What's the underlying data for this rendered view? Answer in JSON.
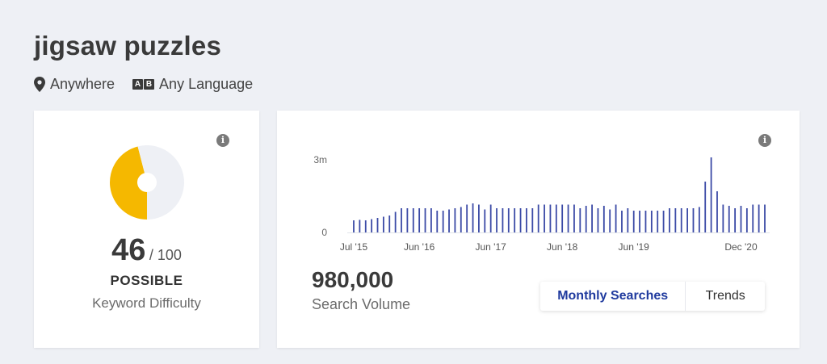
{
  "keyword": {
    "title": "jigsaw puzzles"
  },
  "filters": {
    "location": "Anywhere",
    "language": "Any Language",
    "language_icon_chars": [
      "A",
      "B"
    ]
  },
  "difficulty": {
    "score": "46",
    "max": "/ 100",
    "status": "POSSIBLE",
    "label": "Keyword Difficulty",
    "fraction": 0.46,
    "accent_color": "#f5b800",
    "track_color": "#eef0f5"
  },
  "volume": {
    "value": "980,000",
    "label": "Search Volume"
  },
  "toggle": {
    "monthly_label": "Monthly Searches",
    "trends_label": "Trends",
    "selected": "monthly",
    "selected_color": "#1f3a9e"
  },
  "info_icon_char": "i",
  "chart_data": {
    "type": "bar",
    "bar_color": "#3b4aa6",
    "ylim": [
      0,
      3000000
    ],
    "y_ticks": [
      {
        "value": 0,
        "label": "0"
      },
      {
        "value": 3000000,
        "label": "3m"
      }
    ],
    "x_ticks": [
      {
        "index": 0,
        "label": "Jul '15"
      },
      {
        "index": 11,
        "label": "Jun '16"
      },
      {
        "index": 23,
        "label": "Jun '17"
      },
      {
        "index": 35,
        "label": "Jun '18"
      },
      {
        "index": 47,
        "label": "Jun '19"
      },
      {
        "index": 65,
        "label": "Dec '20"
      }
    ],
    "values": [
      500000,
      520000,
      500000,
      550000,
      600000,
      650000,
      700000,
      850000,
      1000000,
      1000000,
      1000000,
      1000000,
      1000000,
      1000000,
      900000,
      900000,
      950000,
      1000000,
      1050000,
      1150000,
      1200000,
      1150000,
      950000,
      1150000,
      1000000,
      1000000,
      1000000,
      1000000,
      1000000,
      1000000,
      1000000,
      1150000,
      1150000,
      1150000,
      1150000,
      1150000,
      1150000,
      1150000,
      1000000,
      1100000,
      1150000,
      1000000,
      1100000,
      950000,
      1150000,
      900000,
      1000000,
      900000,
      900000,
      900000,
      900000,
      900000,
      900000,
      1000000,
      1000000,
      1000000,
      1000000,
      1000000,
      1050000,
      2100000,
      3100000,
      1700000,
      1150000,
      1100000,
      1000000,
      1100000,
      1000000,
      1150000,
      1150000,
      1150000
    ]
  }
}
